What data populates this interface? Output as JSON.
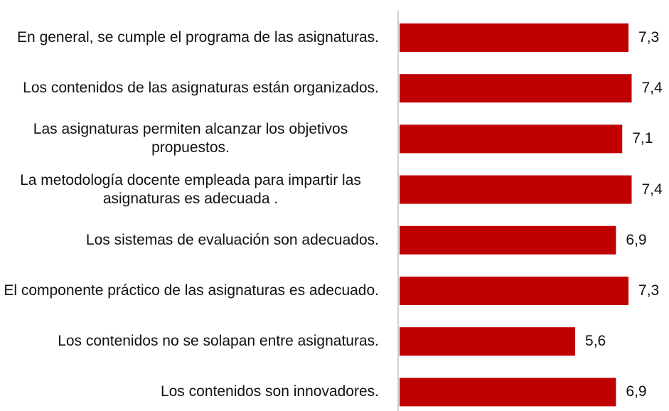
{
  "chart_data": {
    "type": "barh",
    "categories": [
      "En general, se cumple el programa de las asignaturas.",
      "Los contenidos de las asignaturas están organizados.",
      "Las asignaturas permiten alcanzar los objetivos propuestos.",
      "La metodología docente empleada para impartir las asignaturas es adecuada .",
      "Los sistemas de evaluación son adecuados.",
      "El componente práctico de las asignaturas es adecuado.",
      "Los contenidos no se solapan entre asignaturas.",
      "Los contenidos son innovadores."
    ],
    "values": [
      7.3,
      7.4,
      7.1,
      7.4,
      6.9,
      7.3,
      5.6,
      6.9
    ],
    "value_labels": [
      "7,3",
      "7,4",
      "7,1",
      "7,4",
      "6,9",
      "7,3",
      "5,6",
      "6,9"
    ],
    "color": "#c00000",
    "xlim": [
      0,
      8.5
    ]
  }
}
